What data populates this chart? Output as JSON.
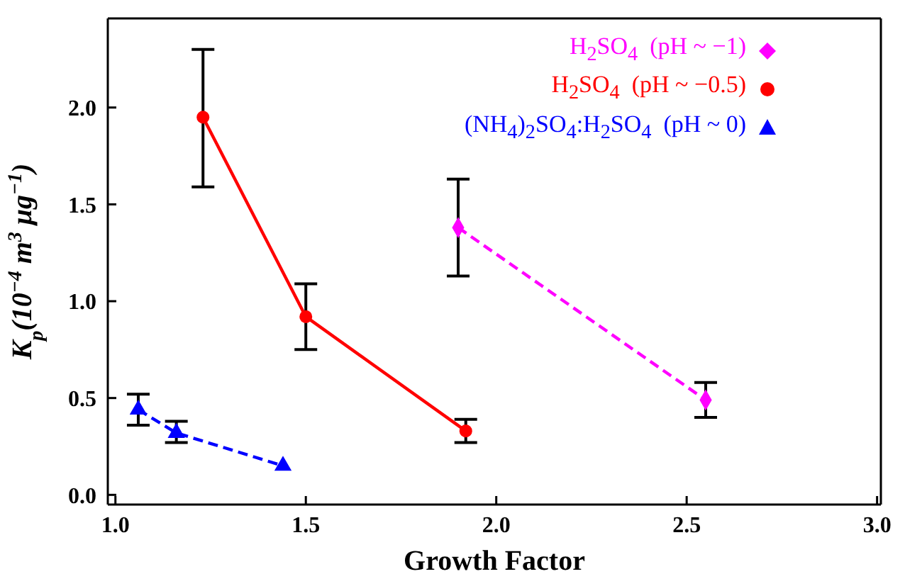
{
  "chart_data": {
    "type": "line",
    "xlabel": "Growth Factor",
    "ylabel": "K$_{p}$(10$^{−4}$ m$^{3}$ μg$^{−1}$)",
    "xlim": [
      0.98,
      3.01
    ],
    "xticks": [
      {
        "value": 1.0,
        "label": "1.0"
      },
      {
        "value": 1.5,
        "label": "1.5"
      },
      {
        "value": 2.0,
        "label": "2.0"
      },
      {
        "value": 2.5,
        "label": "2.5"
      },
      {
        "value": 3.0,
        "label": "3.0"
      }
    ],
    "ylim": [
      -0.05,
      2.46
    ],
    "yticks": [
      {
        "value": 0,
        "label": "0.0"
      },
      {
        "value": 0.5,
        "label": "0.5"
      },
      {
        "value": 1.0,
        "label": "1.0"
      },
      {
        "value": 1.5,
        "label": "1.5"
      },
      {
        "value": 2.0,
        "label": "2.0"
      }
    ],
    "grid": false,
    "legend": "top right",
    "series": [
      {
        "name": "H$_{2}$SO$_{4}$  (pH ~ −1)",
        "color": "#ff00ff",
        "x": [
          1.9,
          2.55
        ],
        "values": [
          1.38,
          0.49
        ],
        "errors": [
          [
            1.13,
            1.63
          ],
          [
            0.4,
            0.58
          ]
        ],
        "marker": "diamond",
        "line_style": "dashed"
      },
      {
        "name": "H$_{2}$SO$_{4}$  (pH ~ −0.5)",
        "color": "#ff0000",
        "x": [
          1.23,
          1.5,
          1.92
        ],
        "values": [
          1.95,
          0.92,
          0.33
        ],
        "errors": [
          [
            1.59,
            2.3
          ],
          [
            0.75,
            1.09
          ],
          [
            0.27,
            0.39
          ]
        ],
        "marker": "circle",
        "line_style": "solid"
      },
      {
        "name": "(NH$_{4}$)$_{2}$SO$_{4}$:H$_{2}$SO$_{4}$  (pH ~ 0)",
        "color": "#0000ff",
        "x": [
          1.06,
          1.16,
          1.44
        ],
        "values": [
          0.44,
          0.32,
          0.15
        ],
        "errors": [
          [
            0.36,
            0.52
          ],
          [
            0.27,
            0.38
          ],
          null
        ],
        "marker": "triangle",
        "line_style": "dashed"
      }
    ]
  }
}
